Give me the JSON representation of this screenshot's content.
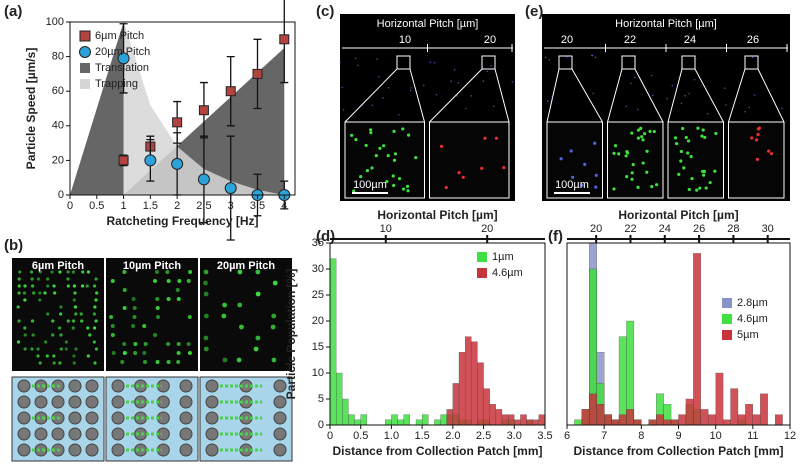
{
  "panel_labels": [
    "(a)",
    "(b)",
    "(c)",
    "(d)",
    "(e)",
    "(f)"
  ],
  "chart_data": [
    {
      "type": "scatter",
      "xlabel": "Ratcheting Frequency [Hz]",
      "ylabel": "Particle Speed [µm/s]",
      "xlim": [
        0,
        4.2
      ],
      "ylim": [
        0,
        100
      ],
      "xticks": [
        0,
        0.5,
        1,
        1.5,
        2,
        2.5,
        3,
        3.5,
        4
      ],
      "yticks": [
        0,
        20,
        40,
        60,
        80,
        100
      ],
      "legend": "upper left",
      "series": [
        {
          "name": "6µm Pitch",
          "color": "#b2433e",
          "marker": "square",
          "x": [
            1,
            1.5,
            2,
            2.5,
            3,
            3.5,
            4
          ],
          "values": [
            20,
            28,
            42,
            49,
            60,
            70,
            90
          ],
          "errors": [
            3,
            6,
            12,
            16,
            20,
            20,
            25
          ]
        },
        {
          "name": "20µm Pitch",
          "color": "#2ba3d8",
          "marker": "circle",
          "x": [
            1,
            1.5,
            2,
            2.5,
            3,
            3.5,
            4
          ],
          "values": [
            79,
            20,
            18,
            9,
            4,
            0,
            0
          ],
          "errors": [
            20,
            12,
            18,
            25,
            30,
            12,
            8
          ]
        }
      ],
      "areas": [
        {
          "name": "Translation",
          "color": "#666666",
          "x": [
            0,
            1,
            1,
            4
          ],
          "values": [
            0,
            100,
            0,
            85
          ]
        },
        {
          "name": "Trapping",
          "color": "#d6d6d6",
          "x": [
            1,
            1.5,
            2,
            2.5,
            3,
            3.5,
            4
          ],
          "values": [
            100,
            52,
            28,
            15,
            8,
            3,
            0
          ]
        }
      ]
    },
    {
      "type": "histogram",
      "xlabel": "Distance from Collection Patch [mm]",
      "ylabel": "Particle Population [%]",
      "x2label": "Horizontal Pitch [µm]",
      "x2lim": [
        4.5,
        25.7
      ],
      "x2ticks": [
        10,
        20
      ],
      "xlim": [
        0,
        3.5
      ],
      "ylim": [
        0,
        35
      ],
      "xticks": [
        0,
        0.5,
        {
          "value": 1,
          "label": "1.0"
        },
        1.5,
        {
          "value": 2,
          "label": "2.0"
        },
        2.5,
        {
          "value": 3,
          "label": "3.0"
        },
        3.5
      ],
      "yticks": [
        0,
        5,
        10,
        15,
        20,
        25,
        30,
        35
      ],
      "legend": "upper right",
      "bins": [
        0,
        0.1,
        0.2,
        0.3,
        0.4,
        0.5,
        0.6,
        0.7,
        0.8,
        0.9,
        1,
        1.1,
        1.2,
        1.3,
        1.4,
        1.5,
        1.6,
        1.7,
        1.8,
        1.9,
        2,
        2.1,
        2.2,
        2.3,
        2.4,
        2.5,
        2.6,
        2.7,
        2.8,
        2.9,
        3,
        3.1,
        3.2,
        3.3,
        3.4,
        3.5
      ],
      "series": [
        {
          "name": "1µm",
          "color": "#3fe03f",
          "values": [
            32,
            10,
            5,
            2,
            1,
            2,
            0,
            0,
            0,
            1,
            2,
            1,
            2,
            0,
            1,
            2,
            0,
            1,
            2,
            2,
            2,
            1,
            1,
            0,
            1,
            1,
            0,
            0,
            1,
            1,
            0,
            0,
            1,
            0,
            0
          ]
        },
        {
          "name": "4.6µm",
          "color": "#c8343c",
          "values": [
            0,
            0,
            0,
            0,
            0,
            0,
            0,
            0,
            0,
            0,
            0,
            0,
            0,
            0,
            0,
            0,
            0,
            0,
            0,
            3,
            8,
            14,
            17,
            16,
            12,
            7,
            4,
            3,
            2,
            2,
            1,
            2,
            1,
            1,
            2
          ]
        }
      ]
    },
    {
      "type": "histogram",
      "xlabel": "Distance from Collection Patch [mm]",
      "x2label": "Horizontal Pitch [µm]",
      "x2lim": [
        18.3,
        31.3
      ],
      "x2ticks": [
        20,
        22,
        24,
        26,
        28,
        30
      ],
      "xlim": [
        6,
        12
      ],
      "ylim": [
        0,
        35
      ],
      "xticks": [
        6,
        7,
        8,
        9,
        10,
        11,
        12
      ],
      "legend": "right",
      "bins": [
        6,
        6.2,
        6.4,
        6.6,
        6.8,
        7,
        7.2,
        7.4,
        7.6,
        7.8,
        8,
        8.2,
        8.4,
        8.6,
        8.8,
        9,
        9.2,
        9.4,
        9.6,
        9.8,
        10,
        10.2,
        10.4,
        10.6,
        10.8,
        11,
        11.2,
        11.4,
        11.6,
        11.8,
        12
      ],
      "series": [
        {
          "name": "2.8µm",
          "color": "#8a93c8",
          "values": [
            0,
            0,
            1,
            35,
            14,
            2,
            1,
            0,
            0,
            1,
            0,
            0,
            0,
            0,
            0,
            0,
            0,
            0,
            0,
            0,
            0,
            0,
            0,
            0,
            0,
            0,
            0,
            0,
            0,
            0
          ]
        },
        {
          "name": "4.6µm",
          "color": "#3fe03f",
          "values": [
            0,
            1,
            3,
            30,
            8,
            2,
            1,
            17,
            20,
            1,
            0,
            1,
            6,
            4,
            1,
            0,
            4,
            3,
            0,
            0,
            0,
            0,
            0,
            1,
            0,
            0,
            0,
            0,
            0,
            0
          ]
        },
        {
          "name": "5µm",
          "color": "#c8343c",
          "values": [
            0,
            0,
            3,
            6,
            4,
            2,
            1,
            2,
            3,
            1,
            0,
            1,
            2,
            1,
            1,
            2,
            5,
            33,
            3,
            2,
            10,
            1,
            7,
            2,
            4,
            2,
            6,
            0,
            2,
            0
          ]
        }
      ]
    }
  ],
  "image_panels": {
    "b": {
      "captions": [
        "6µm Pitch",
        "10µm Pitch",
        "20µm Pitch"
      ]
    },
    "c": {
      "axis_label": "Horizontal Pitch [µm]",
      "ticks": [
        "10",
        "20"
      ],
      "scale_bar": "100µm"
    },
    "e": {
      "axis_label": "Horizontal Pitch [µm]",
      "ticks": [
        "20",
        "22",
        "24",
        "26"
      ],
      "scale_bar": "100µm"
    }
  }
}
